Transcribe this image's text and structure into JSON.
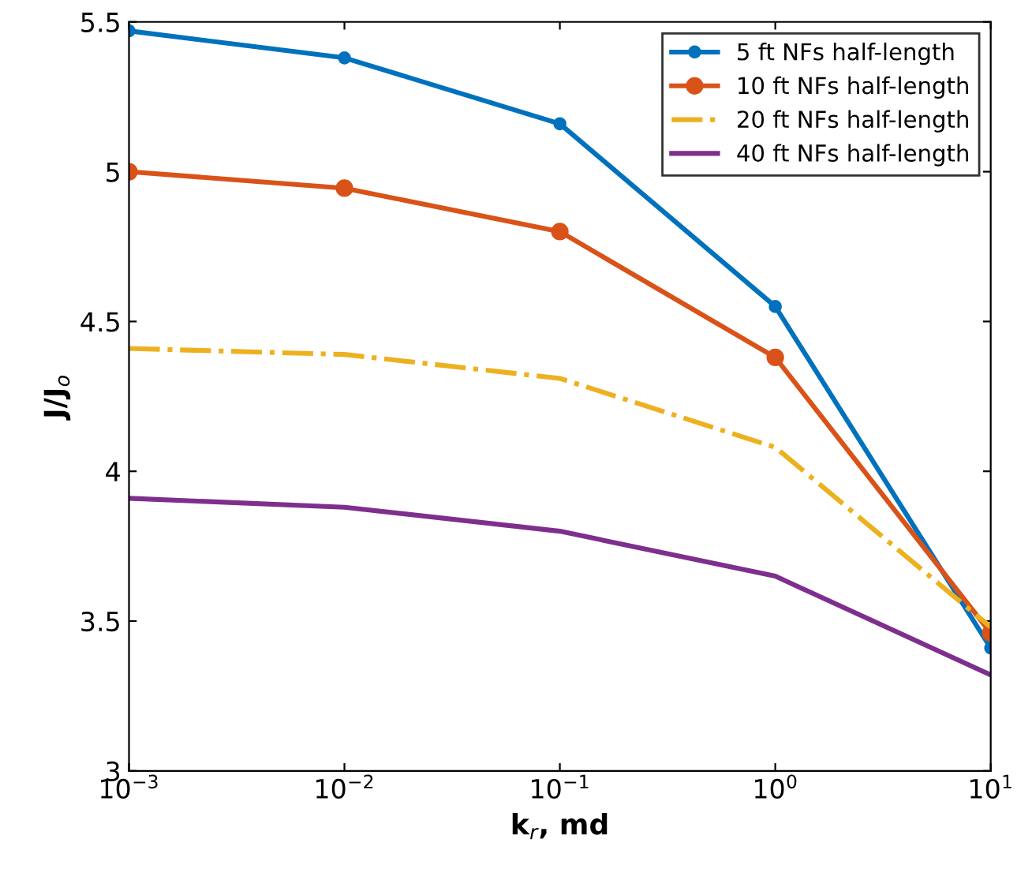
{
  "chart_data": {
    "type": "line",
    "xlabel": "k$_{r}$, md",
    "ylabel": "J/J$_{o}$",
    "log": "x",
    "x": [
      0.001,
      0.01,
      0.1,
      1,
      10
    ],
    "series": [
      {
        "name": "5 ft NFs half-length",
        "color": "#0072bd",
        "values": [
          5.47,
          5.38,
          5.16,
          4.55,
          3.41
        ],
        "marker": "circle",
        "line_style": "solid"
      },
      {
        "name": "10 ft NFs half-length",
        "color": "#d95319",
        "values": [
          5.0,
          4.945,
          4.8,
          4.38,
          3.46
        ],
        "marker": "circle",
        "line_style": "solid"
      },
      {
        "name": "20 ft NFs half-length",
        "color": "#edb120",
        "values": [
          4.41,
          4.39,
          4.31,
          4.08,
          3.48
        ],
        "marker": "none",
        "line_style": "dashdot"
      },
      {
        "name": "40 ft NFs half-length",
        "color": "#7e2f8e",
        "values": [
          3.91,
          3.88,
          3.8,
          3.65,
          3.32
        ],
        "marker": "none",
        "line_style": "solid"
      }
    ],
    "xlim": [
      0.001,
      10
    ],
    "xticks": [
      {
        "value": 0.001,
        "label": "10$^{−3}$"
      },
      {
        "value": 0.01,
        "label": "10$^{−2}$"
      },
      {
        "value": 0.1,
        "label": "10$^{−1}$"
      },
      {
        "value": 1,
        "label": "10$^{0}$"
      },
      {
        "value": 10,
        "label": "10$^{1}$"
      }
    ],
    "ylim": [
      3,
      5.5
    ],
    "yticks": [
      3,
      3.5,
      4,
      4.5,
      5,
      5.5
    ],
    "grid": false,
    "legend": "top right"
  }
}
